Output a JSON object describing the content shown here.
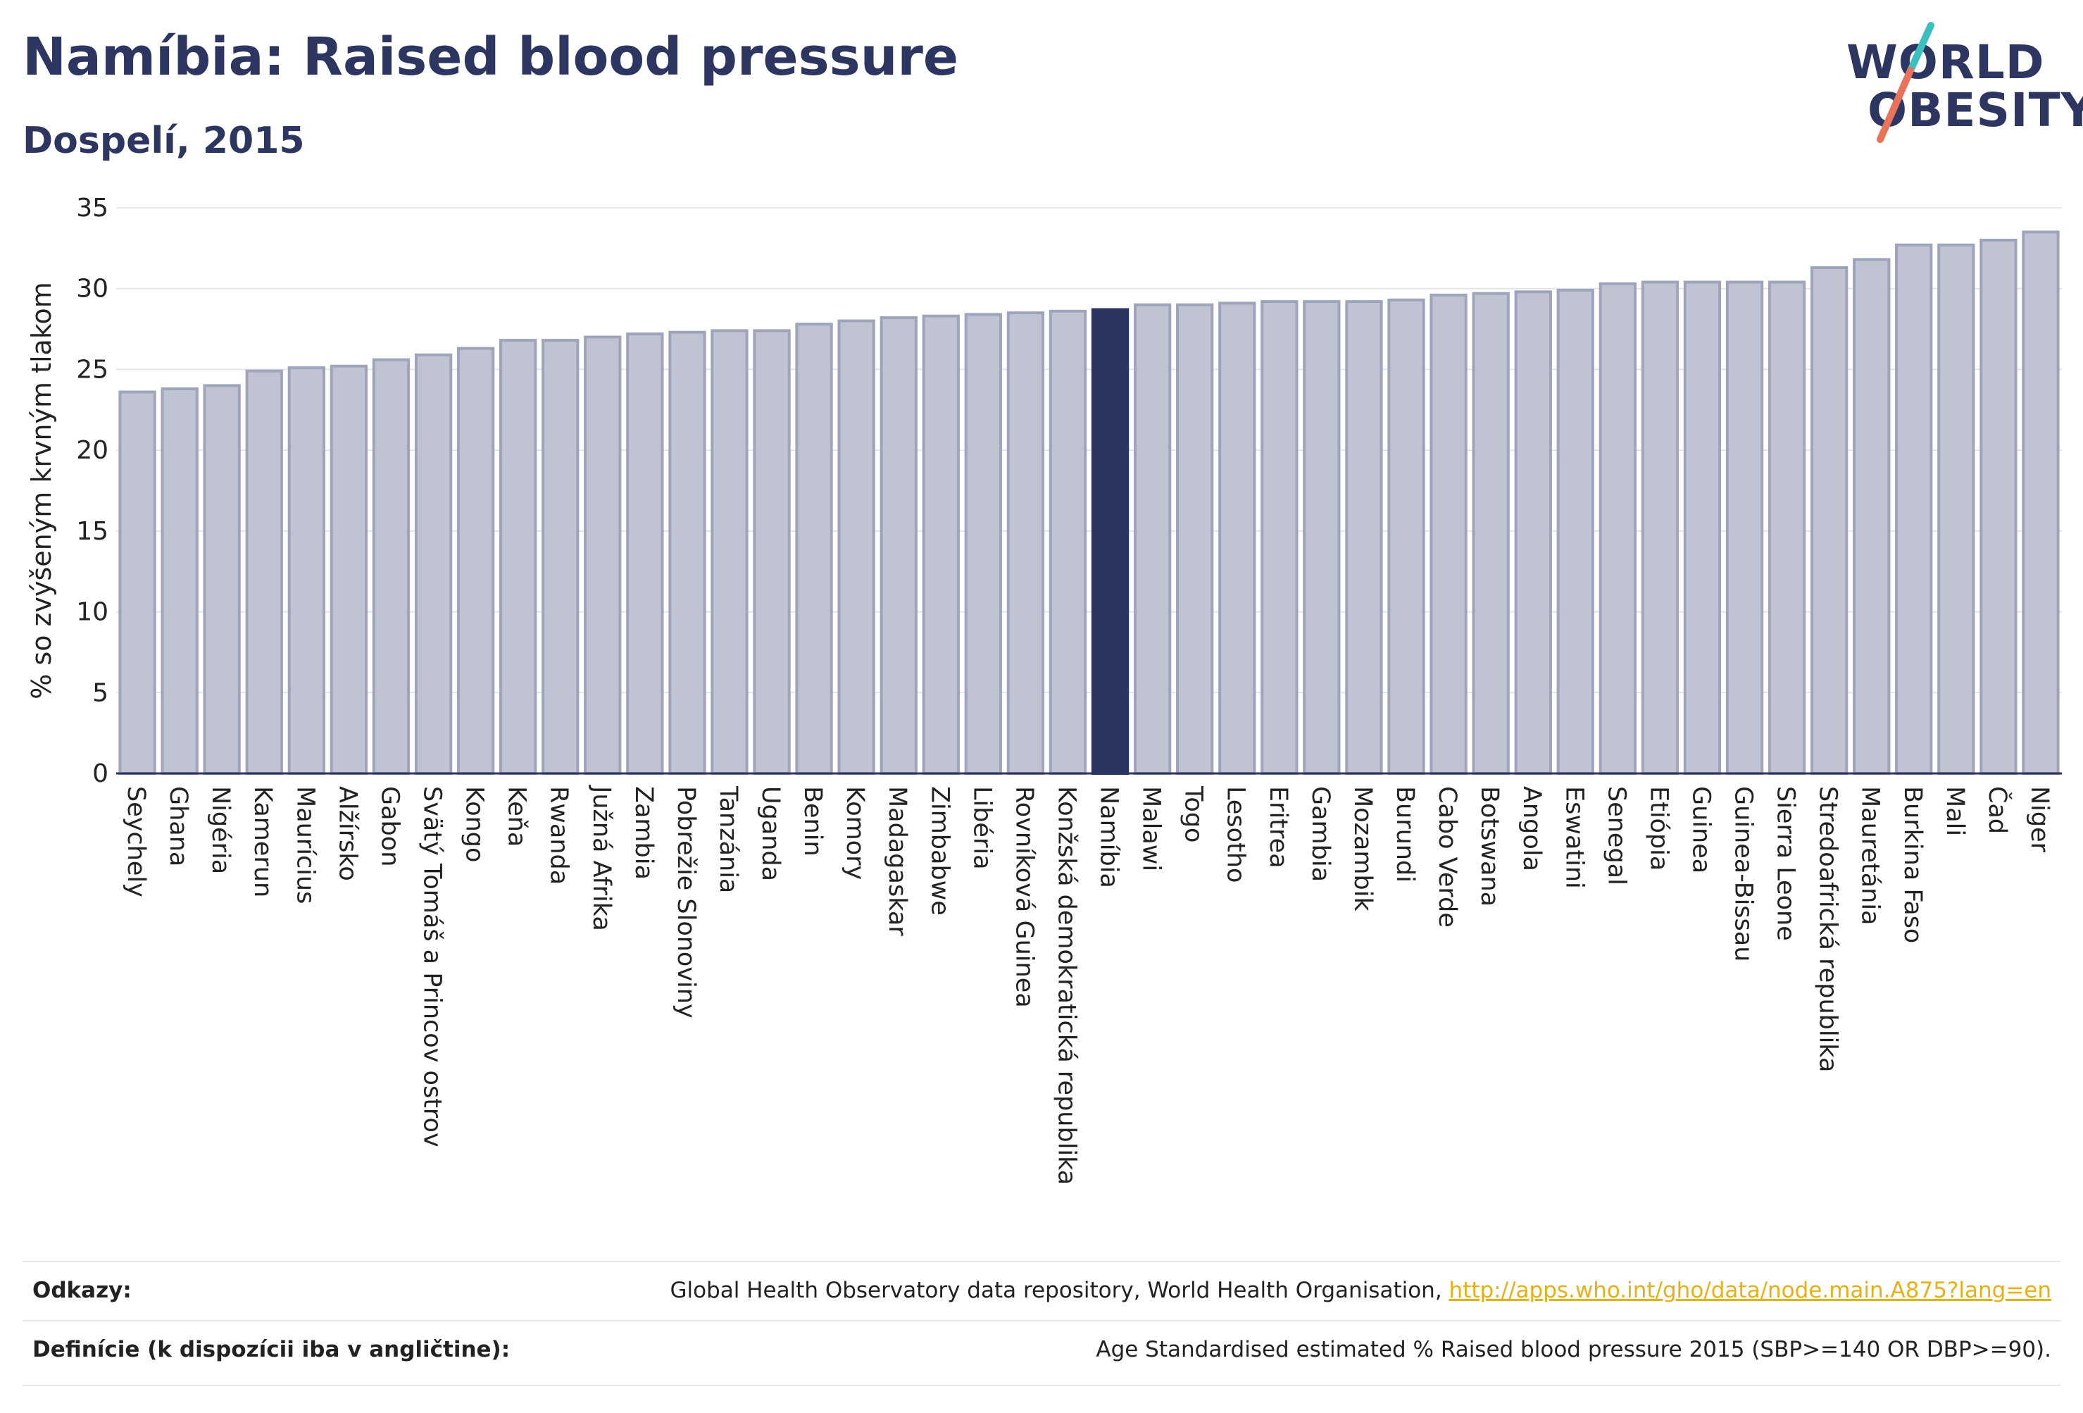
{
  "header": {
    "title": "Namíbia: Raised blood pressure",
    "subtitle": "Dospelí, 2015"
  },
  "logo": {
    "line1": "WORLD",
    "line2": "OBESITY",
    "colors": {
      "text": "#2d3561",
      "slash_teal": "#3bbfbf",
      "slash_coral": "#e8735a"
    }
  },
  "colors": {
    "bar_default": "#c0c4d2",
    "bar_border": "#9ea4bb",
    "bar_highlight": "#2b3562",
    "axis": "#2d3561",
    "grid": "#e4e5ea",
    "text": "#222222"
  },
  "chart_data": {
    "type": "bar",
    "title": "Namíbia: Raised blood pressure",
    "subtitle": "Dospelí, 2015",
    "xlabel": "",
    "ylabel": "% so zvýšeným krvným tlakom",
    "ylim": [
      0,
      35
    ],
    "yticks": [
      0,
      5,
      10,
      15,
      20,
      25,
      30,
      35
    ],
    "grid": true,
    "highlight": "Namíbia",
    "categories": [
      "Seychely",
      "Ghana",
      "Nigéria",
      "Kamerun",
      "Maurícius",
      "Alžírsko",
      "Gabon",
      "Svätý Tomáš a Princov ostrov",
      "Kongo",
      "Keňa",
      "Rwanda",
      "Južná Afrika",
      "Zambia",
      "Pobrežie Slonoviny",
      "Tanzánia",
      "Uganda",
      "Benin",
      "Komory",
      "Madagaskar",
      "Zimbabwe",
      "Libéria",
      "Rovníková Guinea",
      "Konžská demokratická republika",
      "Namíbia",
      "Malawi",
      "Togo",
      "Lesotho",
      "Eritrea",
      "Gambia",
      "Mozambik",
      "Burundi",
      "Cabo Verde",
      "Botswana",
      "Angola",
      "Eswatini",
      "Senegal",
      "Etiópia",
      "Guinea",
      "Guinea-Bissau",
      "Sierra Leone",
      "Stredoafrická republika",
      "Mauretánia",
      "Burkina Faso",
      "Mali",
      "Čad",
      "Niger"
    ],
    "values": [
      23.6,
      23.8,
      24.0,
      24.9,
      25.1,
      25.2,
      25.6,
      25.9,
      26.3,
      26.8,
      26.8,
      27.0,
      27.2,
      27.3,
      27.4,
      27.4,
      27.8,
      28.0,
      28.2,
      28.3,
      28.4,
      28.5,
      28.6,
      28.7,
      29.0,
      29.0,
      29.1,
      29.2,
      29.2,
      29.2,
      29.3,
      29.6,
      29.7,
      29.8,
      29.9,
      30.3,
      30.4,
      30.4,
      30.4,
      30.4,
      31.3,
      31.8,
      32.7,
      32.7,
      33.0,
      33.5
    ]
  },
  "footer": {
    "sources_label": "Odkazy:",
    "sources_text": "Global Health Observatory data repository, World Health Organisation, ",
    "sources_link": "http://apps.who.int/gho/data/node.main.A875?lang=en",
    "definition_label": "Definície (k dispozícii iba v angličtine):",
    "definition_text": "Age Standardised estimated % Raised blood pressure 2015 (SBP>=140 OR DBP>=90)."
  }
}
